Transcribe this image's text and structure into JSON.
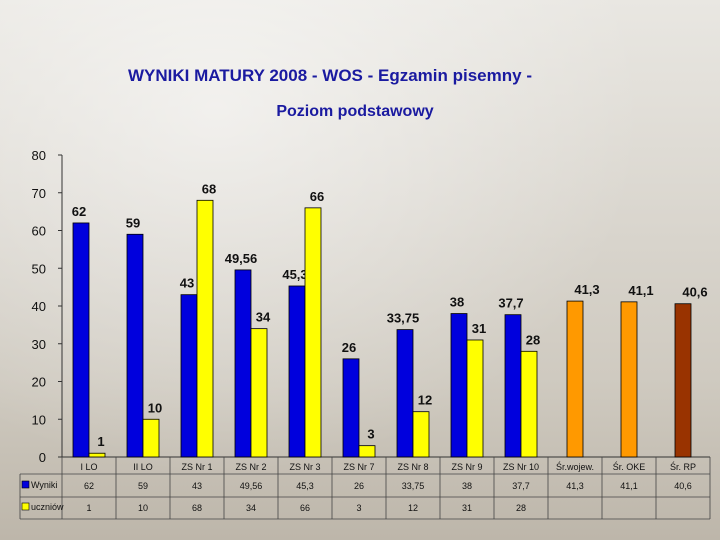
{
  "title": {
    "part1": "WYNIKI MATURY 2008 - ",
    "highlight": "WOS",
    "part2": " - Egzamin pisemny -"
  },
  "subtitle": "Poziom podstawowy",
  "colors": {
    "series_blue": "#0000dd",
    "series_yellow": "#ffff00",
    "ref_orange": "#ff9900",
    "ref_brown": "#993300",
    "title_blue": "#1a1aa0",
    "title_red": "#e00000"
  },
  "chart_data": {
    "type": "bar",
    "categories": [
      "I LO",
      "II LO",
      "ZS Nr 1",
      "ZS Nr 2",
      "ZS Nr 3",
      "ZS Nr 7",
      "ZS Nr 8",
      "ZS Nr 9",
      "ZS Nr 10",
      "Śr.wojew.",
      "Śr. OKE",
      "Śr. RP"
    ],
    "category_colors": [
      null,
      null,
      null,
      null,
      null,
      null,
      null,
      null,
      null,
      "#ff9900",
      "#ff9900",
      "#993300"
    ],
    "series": [
      {
        "name": "Wyniki",
        "color": "#0000dd",
        "values": [
          62,
          59,
          43,
          49.56,
          45.3,
          26,
          33.75,
          38,
          37.7,
          41.3,
          41.1,
          40.6
        ],
        "labels": [
          "62",
          "59",
          "43",
          "49,56",
          "45,3",
          "26",
          "33,75",
          "38",
          "37,7",
          "41,3",
          "41,1",
          "40,6"
        ]
      },
      {
        "name": "uczniów",
        "color": "#ffff00",
        "values": [
          1,
          10,
          68,
          34,
          66,
          3,
          12,
          31,
          28,
          null,
          null,
          null
        ],
        "labels": [
          "1",
          "10",
          "68",
          "34",
          "66",
          "3",
          "12",
          "31",
          "28",
          "",
          "",
          ""
        ]
      }
    ],
    "ylim": [
      0,
      80
    ],
    "yticks": [
      0,
      10,
      20,
      30,
      40,
      50,
      60,
      70,
      80
    ],
    "grid": false,
    "legend": "data-table-bottom"
  }
}
